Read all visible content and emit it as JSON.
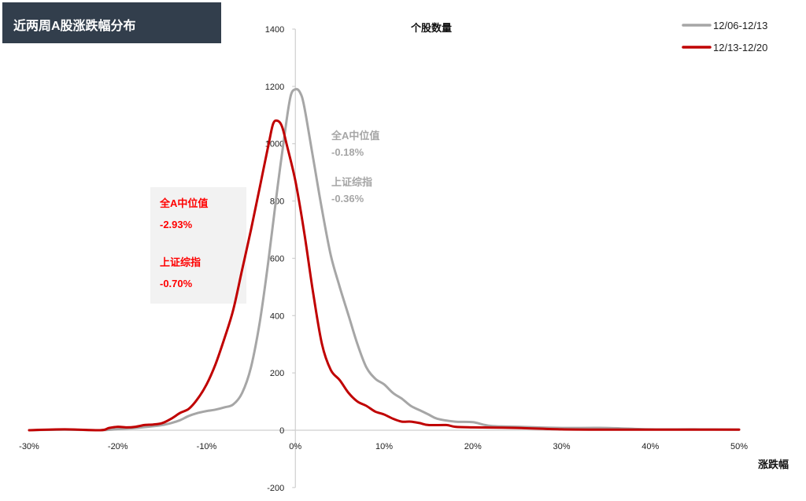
{
  "header": {
    "title": "近两周A股涨跌幅分布"
  },
  "chart_data": {
    "type": "line",
    "ylabel": "个股数量",
    "xlabel": "涨跌幅",
    "xlim": [
      -30,
      50
    ],
    "ylim": [
      -200,
      1400
    ],
    "xticks": [
      "-30%",
      "-20%",
      "-10%",
      "0%",
      "10%",
      "20%",
      "30%",
      "40%",
      "50%"
    ],
    "xtick_values": [
      -30,
      -20,
      -10,
      0,
      10,
      20,
      30,
      40,
      50
    ],
    "yticks": [
      -200,
      0,
      200,
      400,
      600,
      800,
      1000,
      1200,
      1400
    ],
    "grid": false,
    "legend_position": "top-right",
    "series": [
      {
        "name": "12/06-12/13",
        "color": "#a6a6a6",
        "points": [
          [
            -30,
            0
          ],
          [
            -26,
            2
          ],
          [
            -22,
            0
          ],
          [
            -20,
            4
          ],
          [
            -18,
            8
          ],
          [
            -16,
            14
          ],
          [
            -15,
            18
          ],
          [
            -14,
            25
          ],
          [
            -13,
            35
          ],
          [
            -12,
            50
          ],
          [
            -11,
            60
          ],
          [
            -10,
            67
          ],
          [
            -9,
            72
          ],
          [
            -8,
            80
          ],
          [
            -7,
            90
          ],
          [
            -6,
            130
          ],
          [
            -5,
            220
          ],
          [
            -4,
            380
          ],
          [
            -3,
            600
          ],
          [
            -2,
            850
          ],
          [
            -1,
            1080
          ],
          [
            -0.5,
            1170
          ],
          [
            0,
            1190
          ],
          [
            0.5,
            1180
          ],
          [
            1,
            1130
          ],
          [
            2,
            950
          ],
          [
            3,
            770
          ],
          [
            4,
            610
          ],
          [
            5,
            500
          ],
          [
            6,
            400
          ],
          [
            7,
            300
          ],
          [
            8,
            220
          ],
          [
            9,
            180
          ],
          [
            10,
            160
          ],
          [
            11,
            130
          ],
          [
            12,
            110
          ],
          [
            13,
            85
          ],
          [
            14,
            70
          ],
          [
            15,
            55
          ],
          [
            16,
            40
          ],
          [
            18,
            30
          ],
          [
            20,
            28
          ],
          [
            22,
            15
          ],
          [
            25,
            12
          ],
          [
            30,
            8
          ],
          [
            35,
            8
          ],
          [
            40,
            3
          ],
          [
            45,
            3
          ],
          [
            50,
            2
          ]
        ]
      },
      {
        "name": "12/13-12/20",
        "color": "#c00000",
        "points": [
          [
            -30,
            0
          ],
          [
            -26,
            3
          ],
          [
            -22,
            0
          ],
          [
            -21,
            8
          ],
          [
            -20,
            12
          ],
          [
            -19,
            10
          ],
          [
            -18,
            12
          ],
          [
            -17,
            18
          ],
          [
            -16,
            20
          ],
          [
            -15,
            25
          ],
          [
            -14,
            40
          ],
          [
            -13,
            60
          ],
          [
            -12,
            75
          ],
          [
            -11,
            110
          ],
          [
            -10,
            160
          ],
          [
            -9,
            230
          ],
          [
            -8,
            320
          ],
          [
            -7,
            420
          ],
          [
            -6,
            560
          ],
          [
            -5,
            700
          ],
          [
            -4,
            850
          ],
          [
            -3,
            1000
          ],
          [
            -2.5,
            1070
          ],
          [
            -2,
            1080
          ],
          [
            -1.5,
            1060
          ],
          [
            -1,
            1000
          ],
          [
            0,
            870
          ],
          [
            1,
            690
          ],
          [
            2,
            480
          ],
          [
            3,
            300
          ],
          [
            4,
            210
          ],
          [
            5,
            175
          ],
          [
            6,
            130
          ],
          [
            7,
            100
          ],
          [
            8,
            85
          ],
          [
            9,
            65
          ],
          [
            10,
            55
          ],
          [
            11,
            40
          ],
          [
            12,
            30
          ],
          [
            13,
            30
          ],
          [
            14,
            25
          ],
          [
            15,
            18
          ],
          [
            17,
            18
          ],
          [
            18,
            12
          ],
          [
            20,
            10
          ],
          [
            25,
            8
          ],
          [
            30,
            3
          ],
          [
            35,
            2
          ],
          [
            40,
            2
          ],
          [
            45,
            2
          ],
          [
            50,
            2
          ]
        ]
      }
    ],
    "annotations": {
      "gray": {
        "median_label": "全A中位值",
        "median_value": "-0.18%",
        "index_label": "上证综指",
        "index_value": "-0.36%"
      },
      "red": {
        "median_label": "全A中位值",
        "median_value": "-2.93%",
        "index_label": "上证综指",
        "index_value": "-0.70%"
      }
    }
  }
}
